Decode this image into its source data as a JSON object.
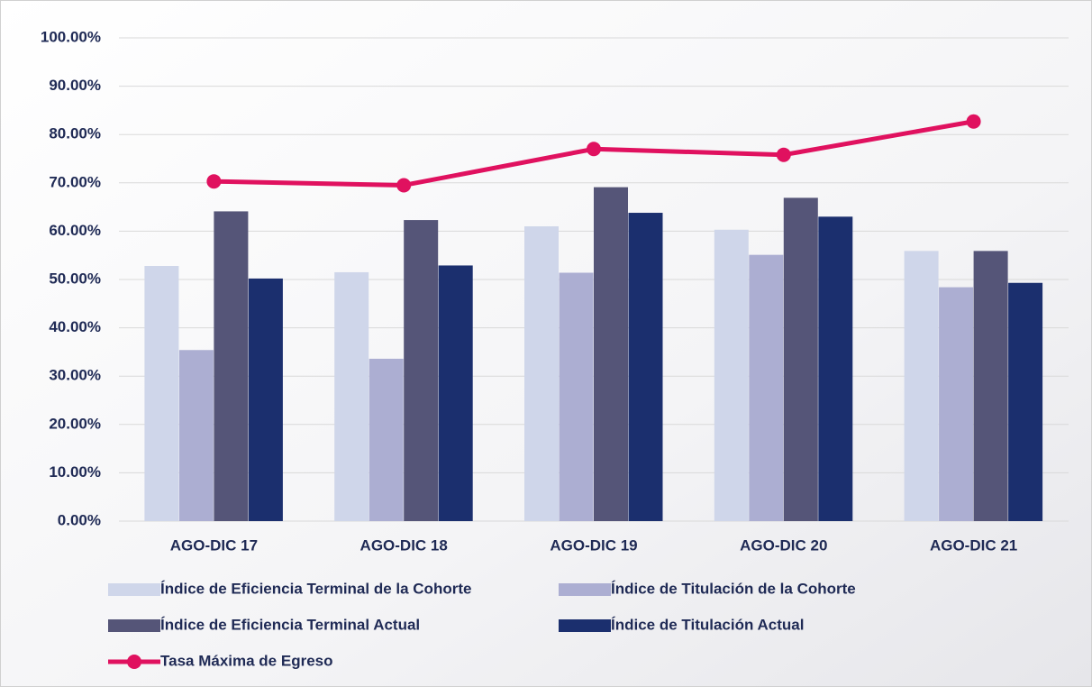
{
  "chart_data": {
    "type": "bar_line",
    "categories": [
      "AGO-DIC 17",
      "AGO-DIC 18",
      "AGO-DIC 19",
      "AGO-DIC 20",
      "AGO-DIC 21"
    ],
    "series": [
      {
        "name": "Índice de Eficiencia Terminal de la Cohorte",
        "type": "bar",
        "color": "#cfd6ea",
        "values": [
          52.8,
          51.5,
          61.0,
          60.3,
          55.9
        ]
      },
      {
        "name": "Índice de Titulación de la Cohorte",
        "type": "bar",
        "color": "#acaed2",
        "values": [
          35.4,
          33.6,
          51.4,
          55.1,
          48.4
        ]
      },
      {
        "name": "Índice de Eficiencia Terminal Actual",
        "type": "bar",
        "color": "#555578",
        "values": [
          64.1,
          62.3,
          69.1,
          66.9,
          55.9
        ]
      },
      {
        "name": "Índice de Titulación Actual",
        "type": "bar",
        "color": "#1b2f6e",
        "values": [
          50.2,
          52.9,
          63.8,
          63.0,
          49.3
        ]
      },
      {
        "name": "Tasa Máxima de Egreso",
        "type": "line",
        "color": "#e0115f",
        "values": [
          70.3,
          69.5,
          77.0,
          75.8,
          82.7
        ]
      }
    ],
    "ylim": [
      0,
      100
    ],
    "yticks": [
      {
        "value": 0,
        "label": "0.00%"
      },
      {
        "value": 10,
        "label": "10.00%"
      },
      {
        "value": 20,
        "label": "20.00%"
      },
      {
        "value": 30,
        "label": "30.00%"
      },
      {
        "value": 40,
        "label": "40.00%"
      },
      {
        "value": 50,
        "label": "50.00%"
      },
      {
        "value": 60,
        "label": "60.00%"
      },
      {
        "value": 70,
        "label": "70.00%"
      },
      {
        "value": 80,
        "label": "80.00%"
      },
      {
        "value": 90,
        "label": "90.00%"
      },
      {
        "value": 100,
        "label": "100.00%"
      }
    ],
    "grid": true
  }
}
